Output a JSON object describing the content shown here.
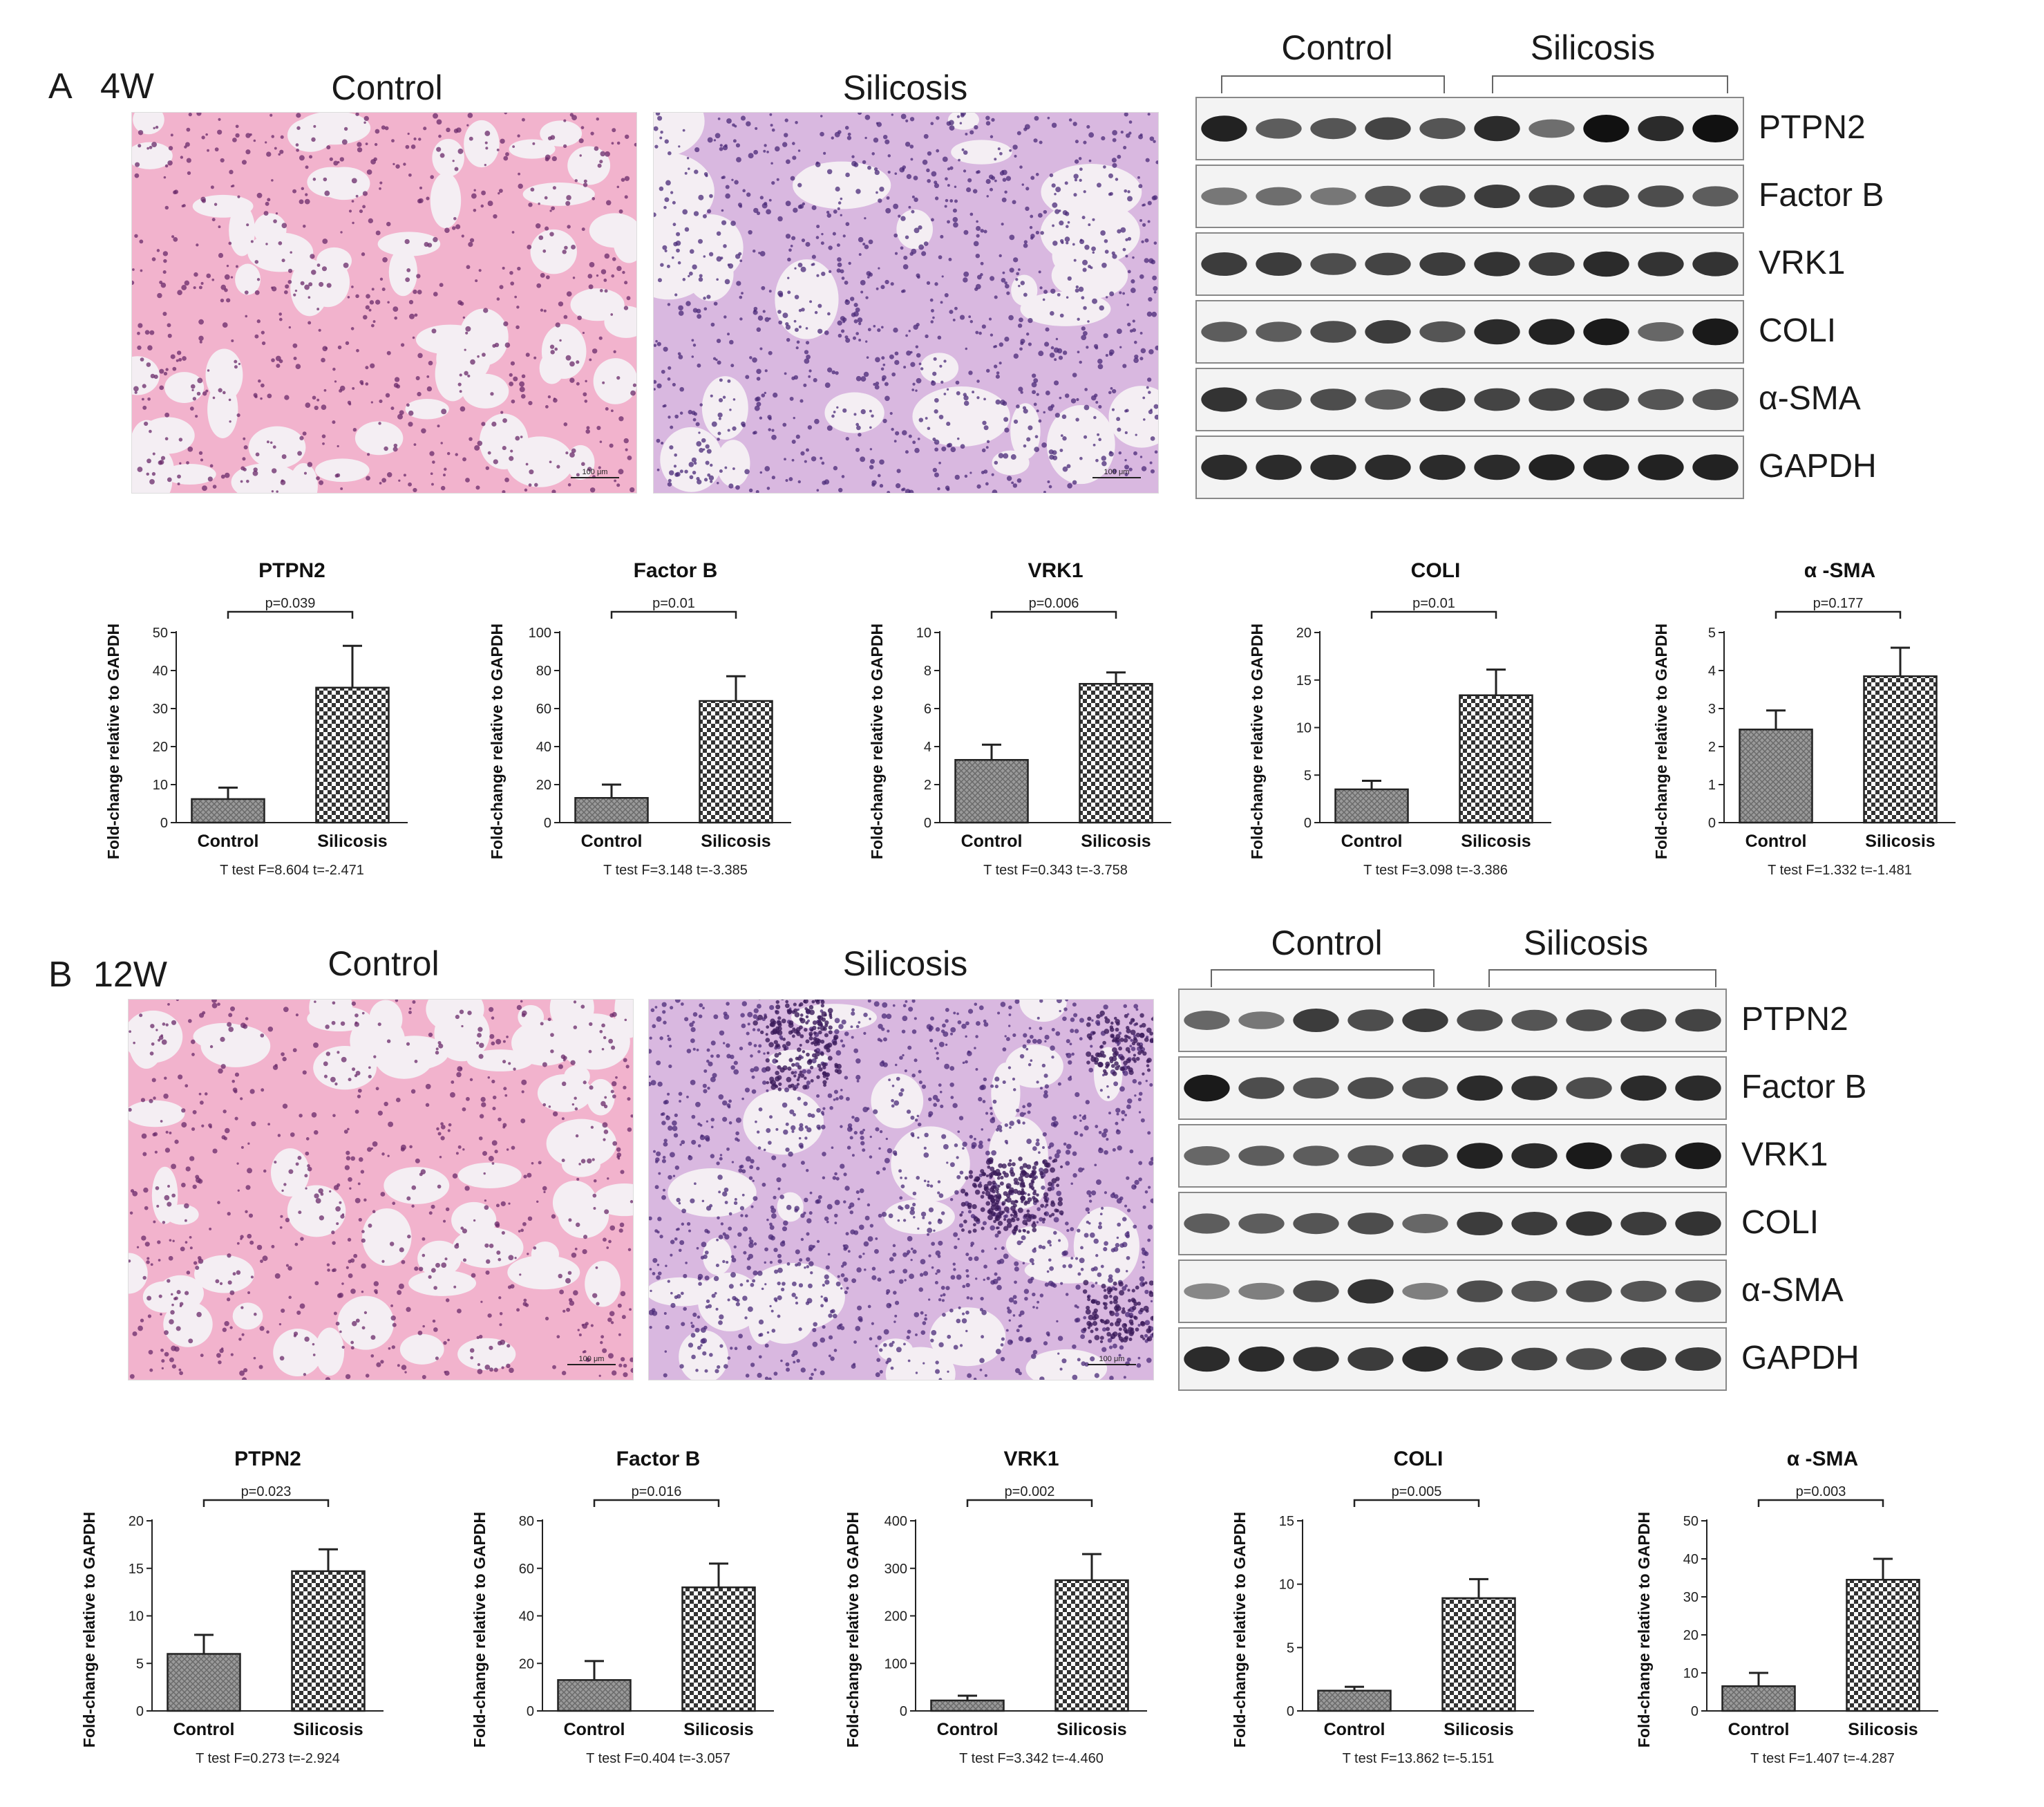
{
  "panels": [
    {
      "letter": "A",
      "week": "4W",
      "histology": {
        "control_label": "Control",
        "silicosis_label": "Silicosis",
        "scale_bar": "100 μm"
      },
      "blot": {
        "group_labels": [
          "Control",
          "Silicosis"
        ],
        "rows": [
          "PTPN2",
          "Factor B",
          "VRK1",
          "COLI",
          "α-SMA",
          "GAPDH"
        ],
        "band_intensity": [
          [
            0.9,
            0.55,
            0.6,
            0.7,
            0.6,
            0.85,
            0.45,
            1.0,
            0.85,
            1.0
          ],
          [
            0.4,
            0.45,
            0.4,
            0.6,
            0.65,
            0.75,
            0.7,
            0.7,
            0.65,
            0.55
          ],
          [
            0.75,
            0.75,
            0.65,
            0.7,
            0.75,
            0.8,
            0.75,
            0.85,
            0.8,
            0.8
          ],
          [
            0.55,
            0.55,
            0.65,
            0.75,
            0.6,
            0.85,
            0.9,
            0.95,
            0.5,
            0.95
          ],
          [
            0.8,
            0.6,
            0.65,
            0.55,
            0.75,
            0.7,
            0.7,
            0.7,
            0.6,
            0.6
          ],
          [
            0.85,
            0.85,
            0.85,
            0.85,
            0.85,
            0.85,
            0.9,
            0.9,
            0.9,
            0.9
          ]
        ]
      },
      "charts": [
        {
          "title": "PTPN2",
          "ylabel": "Fold-change relative  to GAPDH",
          "ylim": [
            0,
            50
          ],
          "ticks": [
            0,
            10,
            20,
            30,
            40,
            50
          ],
          "categories": [
            "Control",
            "Silicosis"
          ],
          "values": [
            6.2,
            35.5
          ],
          "errors": [
            3.0,
            11.0
          ],
          "pvalue": "p=0.039",
          "stats": "T test   F=8.604  t=-2.471"
        },
        {
          "title": "Factor B",
          "ylabel": "Fold-change relative  to GAPDH",
          "ylim": [
            0,
            100
          ],
          "ticks": [
            0,
            20,
            40,
            60,
            80,
            100
          ],
          "categories": [
            "Control",
            "Silicosis"
          ],
          "values": [
            13,
            64
          ],
          "errors": [
            7,
            13
          ],
          "pvalue": "p=0.01",
          "stats": "T test   F=3.148  t=-3.385"
        },
        {
          "title": "VRK1",
          "ylabel": "Fold-change relative  to GAPDH",
          "ylim": [
            0,
            10
          ],
          "ticks": [
            0,
            2,
            4,
            6,
            8,
            10
          ],
          "categories": [
            "Control",
            "Silicosis"
          ],
          "values": [
            3.3,
            7.3
          ],
          "errors": [
            0.8,
            0.6
          ],
          "pvalue": "p=0.006",
          "stats": "T test   F=0.343  t=-3.758"
        },
        {
          "title": "COLI",
          "ylabel": "Fold-change relative  to GAPDH",
          "ylim": [
            0,
            20
          ],
          "ticks": [
            0,
            5,
            10,
            15,
            20
          ],
          "categories": [
            "Control",
            "Silicosis"
          ],
          "values": [
            3.5,
            13.4
          ],
          "errors": [
            0.9,
            2.7
          ],
          "pvalue": "p=0.01",
          "stats": "T test   F=3.098  t=-3.386"
        },
        {
          "title": "α -SMA",
          "ylabel": "Fold-change relative  to GAPDH",
          "ylim": [
            0,
            5
          ],
          "ticks": [
            0,
            1,
            2,
            3,
            4,
            5
          ],
          "categories": [
            "Control",
            "Silicosis"
          ],
          "values": [
            2.45,
            3.85
          ],
          "errors": [
            0.5,
            0.75
          ],
          "pvalue": "p=0.177",
          "stats": "T test   F=1.332  t=-1.481"
        }
      ]
    },
    {
      "letter": "B",
      "week": "12W",
      "histology": {
        "control_label": "Control",
        "silicosis_label": "Silicosis",
        "scale_bar": "100 μm"
      },
      "blot": {
        "group_labels": [
          "Control",
          "Silicosis"
        ],
        "rows": [
          "PTPN2",
          "Factor B",
          "VRK1",
          "COLI",
          "α-SMA",
          "GAPDH"
        ],
        "band_intensity": [
          [
            0.5,
            0.4,
            0.75,
            0.65,
            0.75,
            0.65,
            0.6,
            0.65,
            0.7,
            0.7
          ],
          [
            0.95,
            0.65,
            0.6,
            0.65,
            0.65,
            0.85,
            0.8,
            0.65,
            0.85,
            0.85
          ],
          [
            0.5,
            0.55,
            0.55,
            0.6,
            0.7,
            0.9,
            0.85,
            0.95,
            0.8,
            0.95
          ],
          [
            0.55,
            0.55,
            0.6,
            0.65,
            0.5,
            0.75,
            0.75,
            0.8,
            0.75,
            0.8
          ],
          [
            0.3,
            0.35,
            0.65,
            0.8,
            0.35,
            0.65,
            0.6,
            0.65,
            0.6,
            0.65
          ],
          [
            0.85,
            0.85,
            0.8,
            0.75,
            0.85,
            0.75,
            0.7,
            0.65,
            0.75,
            0.75
          ]
        ]
      },
      "charts": [
        {
          "title": "PTPN2",
          "ylabel": "Fold-change relative  to GAPDH",
          "ylim": [
            0,
            20
          ],
          "ticks": [
            0,
            5,
            10,
            15,
            20
          ],
          "categories": [
            "Control",
            "Silicosis"
          ],
          "values": [
            6,
            14.7
          ],
          "errors": [
            2,
            2.3
          ],
          "pvalue": "p=0.023",
          "stats": "T test   F=0.273  t=-2.924"
        },
        {
          "title": "Factor B",
          "ylabel": "Fold-change relative  to GAPDH",
          "ylim": [
            0,
            80
          ],
          "ticks": [
            0,
            20,
            40,
            60,
            80
          ],
          "categories": [
            "Control",
            "Silicosis"
          ],
          "values": [
            13,
            52
          ],
          "errors": [
            8,
            10
          ],
          "pvalue": "p=0.016",
          "stats": "T test   F=0.404  t=-3.057"
        },
        {
          "title": "VRK1",
          "ylabel": "Fold-change relative  to GAPDH",
          "ylim": [
            0,
            400
          ],
          "ticks": [
            0,
            100,
            200,
            300,
            400
          ],
          "categories": [
            "Control",
            "Silicosis"
          ],
          "values": [
            22,
            275
          ],
          "errors": [
            10,
            55
          ],
          "pvalue": "p=0.002",
          "stats": "T test   F=3.342  t=-4.460"
        },
        {
          "title": "COLI",
          "ylabel": "Fold-change relative  to GAPDH",
          "ylim": [
            0,
            15
          ],
          "ticks": [
            0,
            5,
            10,
            15
          ],
          "categories": [
            "Control",
            "Silicosis"
          ],
          "values": [
            1.6,
            8.9
          ],
          "errors": [
            0.3,
            1.5
          ],
          "pvalue": "p=0.005",
          "stats": "T test   F=13.862  t=-5.151"
        },
        {
          "title": "α -SMA",
          "ylabel": "Fold-change relative  to GAPDH",
          "ylim": [
            0,
            50
          ],
          "ticks": [
            0,
            10,
            20,
            30,
            40,
            50
          ],
          "categories": [
            "Control",
            "Silicosis"
          ],
          "values": [
            6.5,
            34.5
          ],
          "errors": [
            3.5,
            5.5
          ],
          "pvalue": "p=0.003",
          "stats": "T test   F=1.407  t=-4.287"
        }
      ]
    }
  ],
  "chart_data": [
    {
      "type": "bar",
      "panel": "A",
      "title": "PTPN2",
      "categories": [
        "Control",
        "Silicosis"
      ],
      "values": [
        6.2,
        35.5
      ],
      "errors": [
        3.0,
        11.0
      ],
      "ylim": [
        0,
        50
      ],
      "ylabel": "Fold-change relative  to GAPDH"
    },
    {
      "type": "bar",
      "panel": "A",
      "title": "Factor B",
      "categories": [
        "Control",
        "Silicosis"
      ],
      "values": [
        13,
        64
      ],
      "errors": [
        7,
        13
      ],
      "ylim": [
        0,
        100
      ],
      "ylabel": "Fold-change relative  to GAPDH"
    },
    {
      "type": "bar",
      "panel": "A",
      "title": "VRK1",
      "categories": [
        "Control",
        "Silicosis"
      ],
      "values": [
        3.3,
        7.3
      ],
      "errors": [
        0.8,
        0.6
      ],
      "ylim": [
        0,
        10
      ],
      "ylabel": "Fold-change relative  to GAPDH"
    },
    {
      "type": "bar",
      "panel": "A",
      "title": "COLI",
      "categories": [
        "Control",
        "Silicosis"
      ],
      "values": [
        3.5,
        13.4
      ],
      "errors": [
        0.9,
        2.7
      ],
      "ylim": [
        0,
        20
      ],
      "ylabel": "Fold-change relative  to GAPDH"
    },
    {
      "type": "bar",
      "panel": "A",
      "title": "α -SMA",
      "categories": [
        "Control",
        "Silicosis"
      ],
      "values": [
        2.45,
        3.85
      ],
      "errors": [
        0.5,
        0.75
      ],
      "ylim": [
        0,
        5
      ],
      "ylabel": "Fold-change relative  to GAPDH"
    },
    {
      "type": "bar",
      "panel": "B",
      "title": "PTPN2",
      "categories": [
        "Control",
        "Silicosis"
      ],
      "values": [
        6,
        14.7
      ],
      "errors": [
        2,
        2.3
      ],
      "ylim": [
        0,
        20
      ],
      "ylabel": "Fold-change relative  to GAPDH"
    },
    {
      "type": "bar",
      "panel": "B",
      "title": "Factor B",
      "categories": [
        "Control",
        "Silicosis"
      ],
      "values": [
        13,
        52
      ],
      "errors": [
        8,
        10
      ],
      "ylim": [
        0,
        80
      ],
      "ylabel": "Fold-change relative  to GAPDH"
    },
    {
      "type": "bar",
      "panel": "B",
      "title": "VRK1",
      "categories": [
        "Control",
        "Silicosis"
      ],
      "values": [
        22,
        275
      ],
      "errors": [
        10,
        55
      ],
      "ylim": [
        0,
        400
      ],
      "ylabel": "Fold-change relative  to GAPDH"
    },
    {
      "type": "bar",
      "panel": "B",
      "title": "COLI",
      "categories": [
        "Control",
        "Silicosis"
      ],
      "values": [
        1.6,
        8.9
      ],
      "errors": [
        0.3,
        1.5
      ],
      "ylim": [
        0,
        15
      ],
      "ylabel": "Fold-change relative  to GAPDH"
    },
    {
      "type": "bar",
      "panel": "B",
      "title": "α -SMA",
      "categories": [
        "Control",
        "Silicosis"
      ],
      "values": [
        6.5,
        34.5
      ],
      "errors": [
        3.5,
        5.5
      ],
      "ylim": [
        0,
        50
      ],
      "ylabel": "Fold-change relative  to GAPDH"
    }
  ],
  "colors": {
    "he_pink": "#f2b6cf",
    "he_nuclei": "#5a2a73",
    "he_purple": "#c8a0d8",
    "band": "#111111",
    "bar_stroke": "#222222"
  }
}
